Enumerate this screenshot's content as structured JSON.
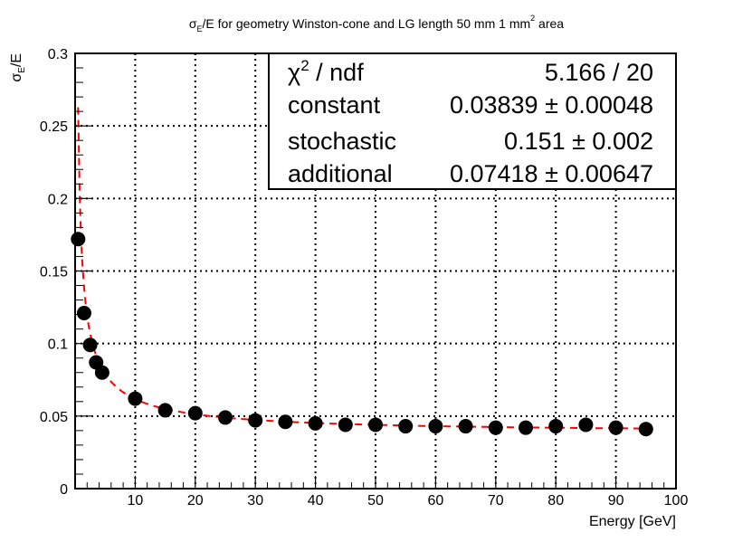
{
  "chart_data": {
    "type": "scatter",
    "title": {
      "sigma": "σ",
      "sub": "E",
      "rest": "/E for geometry Winston-cone  and LG length 50 mm   1 mm",
      "sup": "2",
      "tail": " area"
    },
    "xlabel": "Energy [GeV]",
    "ylabel": {
      "sigma": "σ",
      "sub": "E",
      "rest": "/E"
    },
    "xlim": [
      0,
      100
    ],
    "ylim": [
      0,
      0.3
    ],
    "x_ticks": [
      "10",
      "20",
      "30",
      "40",
      "50",
      "60",
      "70",
      "80",
      "90",
      "100"
    ],
    "y_ticks": [
      "0",
      "0.05",
      "0.1",
      "0.15",
      "0.2",
      "0.25",
      "0.3"
    ],
    "grid": true,
    "series": [
      {
        "marker_color": "#000000",
        "points": [
          {
            "x": 0.5,
            "y": 0.172
          },
          {
            "x": 1.5,
            "y": 0.121
          },
          {
            "x": 2.5,
            "y": 0.099
          },
          {
            "x": 3.5,
            "y": 0.087
          },
          {
            "x": 4.5,
            "y": 0.08
          },
          {
            "x": 10,
            "y": 0.062
          },
          {
            "x": 15,
            "y": 0.054
          },
          {
            "x": 20,
            "y": 0.052
          },
          {
            "x": 25,
            "y": 0.049
          },
          {
            "x": 30,
            "y": 0.047
          },
          {
            "x": 35,
            "y": 0.046
          },
          {
            "x": 40,
            "y": 0.045
          },
          {
            "x": 45,
            "y": 0.044
          },
          {
            "x": 50,
            "y": 0.044
          },
          {
            "x": 55,
            "y": 0.043
          },
          {
            "x": 60,
            "y": 0.043
          },
          {
            "x": 65,
            "y": 0.043
          },
          {
            "x": 70,
            "y": 0.042
          },
          {
            "x": 75,
            "y": 0.042
          },
          {
            "x": 80,
            "y": 0.043
          },
          {
            "x": 85,
            "y": 0.044
          },
          {
            "x": 90,
            "y": 0.042
          },
          {
            "x": 95,
            "y": 0.041
          }
        ]
      }
    ],
    "fit": {
      "color": "#ff0000",
      "style": "dashed",
      "constant": 0.03839,
      "stochastic": 0.151,
      "additional": 0.07418
    },
    "stats_box": {
      "placement": "top-right",
      "rows": [
        {
          "label": "χ",
          "sup": "2",
          "label_rest": " / ndf",
          "value": "5.166 / 20"
        },
        {
          "label": "constant",
          "value": "0.03839 ± 0.00048"
        },
        {
          "label": "stochastic",
          "value": "0.151 ± 0.002"
        },
        {
          "label": "additional",
          "value": "0.07418 ± 0.00647"
        }
      ]
    }
  }
}
